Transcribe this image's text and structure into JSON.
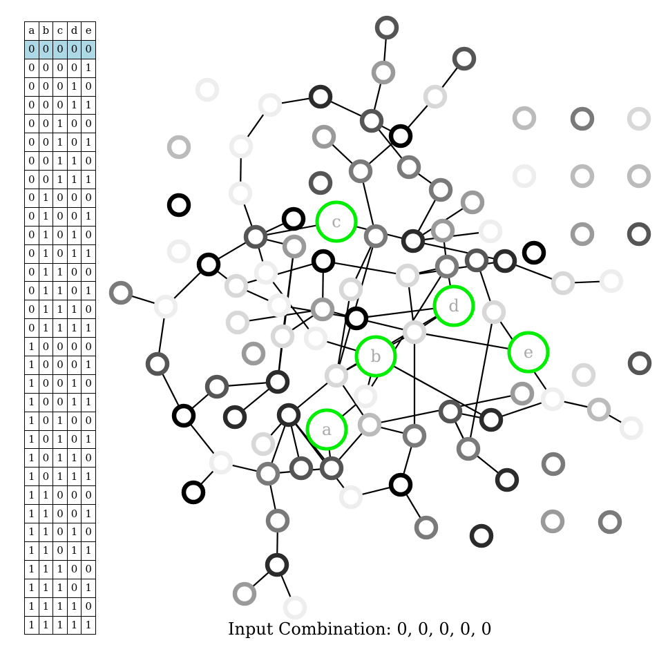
{
  "caption": "Input Combination: 0, 0, 0, 0, 0",
  "truth_table": {
    "headers": [
      "a",
      "b",
      "c",
      "d",
      "e"
    ],
    "active_row": 0,
    "rows": [
      [
        "0",
        "0",
        "0",
        "0",
        "0"
      ],
      [
        "0",
        "0",
        "0",
        "0",
        "1"
      ],
      [
        "0",
        "0",
        "0",
        "1",
        "0"
      ],
      [
        "0",
        "0",
        "0",
        "1",
        "1"
      ],
      [
        "0",
        "0",
        "1",
        "0",
        "0"
      ],
      [
        "0",
        "0",
        "1",
        "0",
        "1"
      ],
      [
        "0",
        "0",
        "1",
        "1",
        "0"
      ],
      [
        "0",
        "0",
        "1",
        "1",
        "1"
      ],
      [
        "0",
        "1",
        "0",
        "0",
        "0"
      ],
      [
        "0",
        "1",
        "0",
        "0",
        "1"
      ],
      [
        "0",
        "1",
        "0",
        "1",
        "0"
      ],
      [
        "0",
        "1",
        "0",
        "1",
        "1"
      ],
      [
        "0",
        "1",
        "1",
        "0",
        "0"
      ],
      [
        "0",
        "1",
        "1",
        "0",
        "1"
      ],
      [
        "0",
        "1",
        "1",
        "1",
        "0"
      ],
      [
        "0",
        "1",
        "1",
        "1",
        "1"
      ],
      [
        "1",
        "0",
        "0",
        "0",
        "0"
      ],
      [
        "1",
        "0",
        "0",
        "0",
        "1"
      ],
      [
        "1",
        "0",
        "0",
        "1",
        "0"
      ],
      [
        "1",
        "0",
        "0",
        "1",
        "1"
      ],
      [
        "1",
        "0",
        "1",
        "0",
        "0"
      ],
      [
        "1",
        "0",
        "1",
        "0",
        "1"
      ],
      [
        "1",
        "0",
        "1",
        "1",
        "0"
      ],
      [
        "1",
        "0",
        "1",
        "1",
        "1"
      ],
      [
        "1",
        "1",
        "0",
        "0",
        "0"
      ],
      [
        "1",
        "1",
        "0",
        "0",
        "1"
      ],
      [
        "1",
        "1",
        "0",
        "1",
        "0"
      ],
      [
        "1",
        "1",
        "0",
        "1",
        "1"
      ],
      [
        "1",
        "1",
        "1",
        "0",
        "0"
      ],
      [
        "1",
        "1",
        "1",
        "0",
        "1"
      ],
      [
        "1",
        "1",
        "1",
        "1",
        "0"
      ],
      [
        "1",
        "1",
        "1",
        "1",
        "1"
      ]
    ]
  },
  "inputs": [
    {
      "id": "a",
      "label": "a",
      "color": "#00ee00"
    },
    {
      "id": "b",
      "label": "b",
      "color": "#00ee00"
    },
    {
      "id": "c",
      "label": "c",
      "color": "#00ee00"
    },
    {
      "id": "d",
      "label": "d",
      "color": "#00ee00"
    },
    {
      "id": "e",
      "label": "e",
      "color": "#00ee00"
    }
  ],
  "colors": {
    "input_ring": "#00ee00",
    "input_label": "#aaaaaa",
    "edge": "#000000",
    "active_row_fill": "#add8e6",
    "node_shades": [
      "#000000",
      "#2b2b2b",
      "#555555",
      "#7a7a7a",
      "#9a9a9a",
      "#bbbbbb",
      "#d8d8d8",
      "#eeeeee"
    ]
  }
}
